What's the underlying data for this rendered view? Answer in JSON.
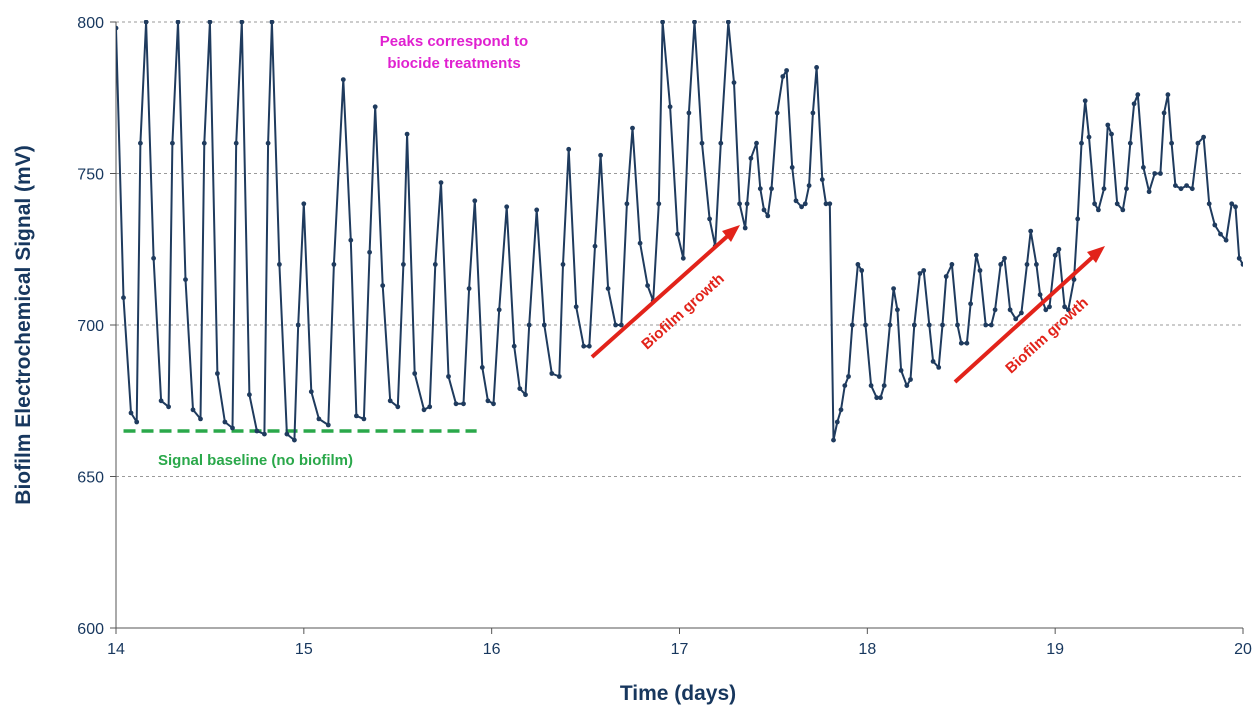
{
  "chart_data": {
    "type": "line",
    "xlabel": "Time (days)",
    "ylabel": "Biofilm Electrochemical Signal (mV)",
    "xlim": [
      14,
      20
    ],
    "ylim": [
      600,
      800
    ],
    "x_ticks": [
      14,
      15,
      16,
      17,
      18,
      19,
      20
    ],
    "y_ticks": [
      600,
      650,
      700,
      750,
      800
    ],
    "grid": "horizontal dashed",
    "colors": {
      "series": "#1f3b5e",
      "baseline": "#2aa84a",
      "arrow": "#e2231a",
      "peaks_note": "#e020d0",
      "axis_text": "#17375e"
    },
    "series": [
      {
        "points": [
          [
            14.0,
            798
          ],
          [
            14.04,
            709
          ],
          [
            14.08,
            671
          ],
          [
            14.11,
            668
          ],
          [
            14.13,
            760
          ],
          [
            14.16,
            800
          ],
          [
            14.2,
            722
          ],
          [
            14.24,
            675
          ],
          [
            14.28,
            673
          ],
          [
            14.3,
            760
          ],
          [
            14.33,
            800
          ],
          [
            14.37,
            715
          ],
          [
            14.41,
            672
          ],
          [
            14.45,
            669
          ],
          [
            14.47,
            760
          ],
          [
            14.5,
            800
          ],
          [
            14.54,
            684
          ],
          [
            14.58,
            668
          ],
          [
            14.62,
            666
          ],
          [
            14.64,
            760
          ],
          [
            14.67,
            800
          ],
          [
            14.71,
            677
          ],
          [
            14.75,
            665
          ],
          [
            14.79,
            664
          ],
          [
            14.81,
            760
          ],
          [
            14.83,
            800
          ],
          [
            14.87,
            720
          ],
          [
            14.91,
            664
          ],
          [
            14.95,
            662
          ],
          [
            14.97,
            700
          ],
          [
            15.0,
            740
          ],
          [
            15.04,
            678
          ],
          [
            15.08,
            669
          ],
          [
            15.13,
            667
          ],
          [
            15.16,
            720
          ],
          [
            15.21,
            781
          ],
          [
            15.25,
            728
          ],
          [
            15.28,
            670
          ],
          [
            15.32,
            669
          ],
          [
            15.35,
            724
          ],
          [
            15.38,
            772
          ],
          [
            15.42,
            713
          ],
          [
            15.46,
            675
          ],
          [
            15.5,
            673
          ],
          [
            15.53,
            720
          ],
          [
            15.55,
            763
          ],
          [
            15.59,
            684
          ],
          [
            15.64,
            672
          ],
          [
            15.67,
            673
          ],
          [
            15.7,
            720
          ],
          [
            15.73,
            747
          ],
          [
            15.77,
            683
          ],
          [
            15.81,
            674
          ],
          [
            15.85,
            674
          ],
          [
            15.88,
            712
          ],
          [
            15.91,
            741
          ],
          [
            15.95,
            686
          ],
          [
            15.98,
            675
          ],
          [
            16.01,
            674
          ],
          [
            16.04,
            705
          ],
          [
            16.08,
            739
          ],
          [
            16.12,
            693
          ],
          [
            16.15,
            679
          ],
          [
            16.18,
            677
          ],
          [
            16.2,
            700
          ],
          [
            16.24,
            738
          ],
          [
            16.28,
            700
          ],
          [
            16.32,
            684
          ],
          [
            16.36,
            683
          ],
          [
            16.38,
            720
          ],
          [
            16.41,
            758
          ],
          [
            16.45,
            706
          ],
          [
            16.49,
            693
          ],
          [
            16.52,
            693
          ],
          [
            16.55,
            726
          ],
          [
            16.58,
            756
          ],
          [
            16.62,
            712
          ],
          [
            16.66,
            700
          ],
          [
            16.69,
            700
          ],
          [
            16.72,
            740
          ],
          [
            16.75,
            765
          ],
          [
            16.79,
            727
          ],
          [
            16.83,
            713
          ],
          [
            16.86,
            708
          ],
          [
            16.89,
            740
          ],
          [
            16.91,
            800
          ],
          [
            16.95,
            772
          ],
          [
            16.99,
            730
          ],
          [
            17.02,
            722
          ],
          [
            17.05,
            770
          ],
          [
            17.08,
            800
          ],
          [
            17.12,
            760
          ],
          [
            17.16,
            735
          ],
          [
            17.19,
            726
          ],
          [
            17.22,
            760
          ],
          [
            17.26,
            800
          ],
          [
            17.29,
            780
          ],
          [
            17.32,
            740
          ],
          [
            17.35,
            732
          ],
          [
            17.36,
            740
          ],
          [
            17.38,
            755
          ],
          [
            17.41,
            760
          ],
          [
            17.43,
            745
          ],
          [
            17.45,
            738
          ],
          [
            17.47,
            736
          ],
          [
            17.49,
            745
          ],
          [
            17.52,
            770
          ],
          [
            17.55,
            782
          ],
          [
            17.57,
            784
          ],
          [
            17.6,
            752
          ],
          [
            17.62,
            741
          ],
          [
            17.65,
            739
          ],
          [
            17.67,
            740
          ],
          [
            17.69,
            746
          ],
          [
            17.71,
            770
          ],
          [
            17.73,
            785
          ],
          [
            17.76,
            748
          ],
          [
            17.78,
            740
          ],
          [
            17.8,
            740
          ],
          [
            17.82,
            662
          ],
          [
            17.84,
            668
          ],
          [
            17.86,
            672
          ],
          [
            17.88,
            680
          ],
          [
            17.9,
            683
          ],
          [
            17.92,
            700
          ],
          [
            17.95,
            720
          ],
          [
            17.97,
            718
          ],
          [
            17.99,
            700
          ],
          [
            18.02,
            680
          ],
          [
            18.05,
            676
          ],
          [
            18.07,
            676
          ],
          [
            18.09,
            680
          ],
          [
            18.12,
            700
          ],
          [
            18.14,
            712
          ],
          [
            18.16,
            705
          ],
          [
            18.18,
            685
          ],
          [
            18.21,
            680
          ],
          [
            18.23,
            682
          ],
          [
            18.25,
            700
          ],
          [
            18.28,
            717
          ],
          [
            18.3,
            718
          ],
          [
            18.33,
            700
          ],
          [
            18.35,
            688
          ],
          [
            18.38,
            686
          ],
          [
            18.4,
            700
          ],
          [
            18.42,
            716
          ],
          [
            18.45,
            720
          ],
          [
            18.48,
            700
          ],
          [
            18.5,
            694
          ],
          [
            18.53,
            694
          ],
          [
            18.55,
            707
          ],
          [
            18.58,
            723
          ],
          [
            18.6,
            718
          ],
          [
            18.63,
            700
          ],
          [
            18.66,
            700
          ],
          [
            18.68,
            705
          ],
          [
            18.71,
            720
          ],
          [
            18.73,
            722
          ],
          [
            18.76,
            705
          ],
          [
            18.79,
            702
          ],
          [
            18.82,
            704
          ],
          [
            18.85,
            720
          ],
          [
            18.87,
            731
          ],
          [
            18.9,
            720
          ],
          [
            18.92,
            710
          ],
          [
            18.95,
            705
          ],
          [
            18.97,
            706
          ],
          [
            19.0,
            723
          ],
          [
            19.02,
            725
          ],
          [
            19.05,
            706
          ],
          [
            19.07,
            705
          ],
          [
            19.1,
            715
          ],
          [
            19.12,
            735
          ],
          [
            19.14,
            760
          ],
          [
            19.16,
            774
          ],
          [
            19.18,
            762
          ],
          [
            19.21,
            740
          ],
          [
            19.23,
            738
          ],
          [
            19.26,
            745
          ],
          [
            19.28,
            766
          ],
          [
            19.3,
            763
          ],
          [
            19.33,
            740
          ],
          [
            19.36,
            738
          ],
          [
            19.38,
            745
          ],
          [
            19.4,
            760
          ],
          [
            19.42,
            773
          ],
          [
            19.44,
            776
          ],
          [
            19.47,
            752
          ],
          [
            19.5,
            744
          ],
          [
            19.53,
            750
          ],
          [
            19.56,
            750
          ],
          [
            19.58,
            770
          ],
          [
            19.6,
            776
          ],
          [
            19.62,
            760
          ],
          [
            19.64,
            746
          ],
          [
            19.67,
            745
          ],
          [
            19.7,
            746
          ],
          [
            19.73,
            745
          ],
          [
            19.76,
            760
          ],
          [
            19.79,
            762
          ],
          [
            19.82,
            740
          ],
          [
            19.85,
            733
          ],
          [
            19.88,
            730
          ],
          [
            19.91,
            728
          ],
          [
            19.94,
            740
          ],
          [
            19.96,
            739
          ],
          [
            19.98,
            722
          ],
          [
            20.0,
            720
          ]
        ]
      }
    ],
    "annotations": {
      "peaks_note_line1": "Peaks correspond to",
      "peaks_note_line2": "biocide treatments",
      "baseline_label": "Signal baseline (no biofilm)",
      "growth_label_1": "Biofilm growth",
      "growth_label_2": "Biofilm growth"
    }
  }
}
